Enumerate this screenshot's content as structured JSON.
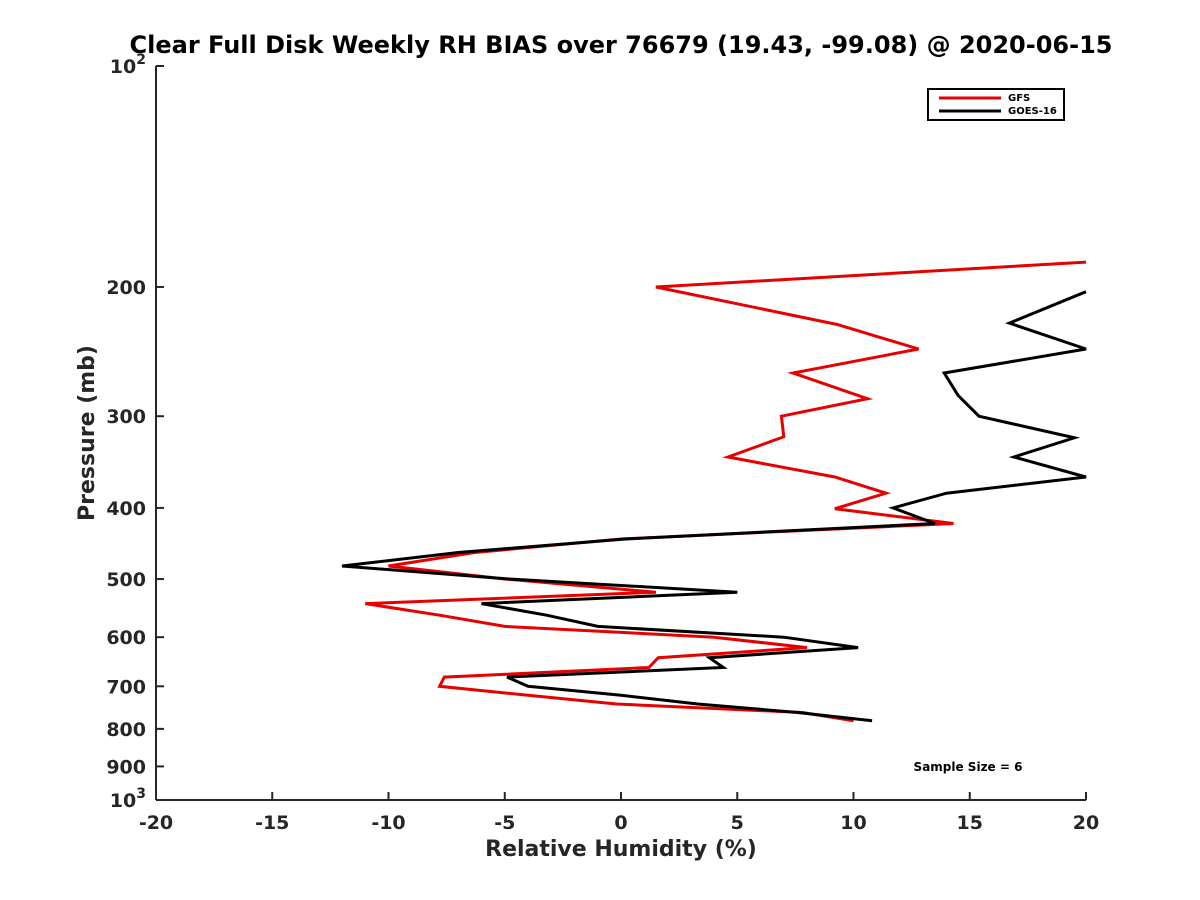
{
  "chart_data": {
    "type": "line",
    "title": "Clear Full Disk Weekly RH BIAS over 76679 (19.43, -99.08) @ 2020-06-15",
    "xlabel": "Relative Humidity (%)",
    "ylabel": "Pressure (mb)",
    "xlim": [
      -20,
      20
    ],
    "ylim": [
      100,
      1000
    ],
    "yscale": "log",
    "y_reversed": true,
    "x_ticks": [
      "-20",
      "-15",
      "-10",
      "-5",
      "0",
      "5",
      "10",
      "15",
      "20"
    ],
    "y_ticks": [
      {
        "value": 100,
        "base": "10",
        "exp": "2"
      },
      {
        "value": 200,
        "label": "200"
      },
      {
        "value": 300,
        "label": "300"
      },
      {
        "value": 400,
        "label": "400"
      },
      {
        "value": 500,
        "label": "500"
      },
      {
        "value": 600,
        "label": "600"
      },
      {
        "value": 700,
        "label": "700"
      },
      {
        "value": 800,
        "label": "800"
      },
      {
        "value": 900,
        "label": "900"
      },
      {
        "value": 1000,
        "base": "10",
        "exp": "3"
      }
    ],
    "grid": false,
    "legend_position": "top-right",
    "annotation": "Sample Size = 6",
    "series": [
      {
        "name": "GFS",
        "color": "#e60000",
        "points": [
          [
            20.0,
            185
          ],
          [
            1.5,
            200
          ],
          [
            9.3,
            225
          ],
          [
            12.8,
            243
          ],
          [
            7.4,
            262
          ],
          [
            10.6,
            284
          ],
          [
            6.9,
            300
          ],
          [
            7.0,
            320
          ],
          [
            4.6,
            341
          ],
          [
            9.2,
            363
          ],
          [
            11.4,
            382
          ],
          [
            9.2,
            401
          ],
          [
            14.3,
            420
          ],
          [
            0.0,
            441
          ],
          [
            -6.3,
            460
          ],
          [
            -10.0,
            480
          ],
          [
            -5.0,
            500
          ],
          [
            1.5,
            521
          ],
          [
            -11.0,
            540
          ],
          [
            -7.8,
            560
          ],
          [
            -5.0,
            580
          ],
          [
            4.0,
            600
          ],
          [
            8.0,
            620
          ],
          [
            1.6,
            640
          ],
          [
            1.2,
            660
          ],
          [
            -7.6,
            680
          ],
          [
            -7.8,
            700
          ],
          [
            -4.0,
            720
          ],
          [
            -0.2,
            740
          ],
          [
            7.8,
            760
          ],
          [
            10.0,
            780
          ]
        ]
      },
      {
        "name": "GOES-16",
        "color": "#000000",
        "points": [
          [
            20.0,
            203
          ],
          [
            16.7,
            224
          ],
          [
            20.0,
            243
          ],
          [
            13.9,
            262
          ],
          [
            14.5,
            281
          ],
          [
            15.4,
            300
          ],
          [
            19.5,
            321
          ],
          [
            16.9,
            341
          ],
          [
            20.0,
            363
          ],
          [
            14.0,
            382
          ],
          [
            11.7,
            400
          ],
          [
            13.5,
            420
          ],
          [
            0.2,
            441
          ],
          [
            -7.0,
            460
          ],
          [
            -12.0,
            480
          ],
          [
            -4.8,
            500
          ],
          [
            5.0,
            521
          ],
          [
            -6.0,
            540
          ],
          [
            -3.2,
            560
          ],
          [
            -1.0,
            580
          ],
          [
            7.0,
            600
          ],
          [
            10.2,
            620
          ],
          [
            3.8,
            640
          ],
          [
            4.4,
            660
          ],
          [
            -4.9,
            680
          ],
          [
            -4.0,
            700
          ],
          [
            0.0,
            720
          ],
          [
            3.3,
            740
          ],
          [
            7.6,
            760
          ],
          [
            10.8,
            780
          ]
        ]
      }
    ]
  }
}
